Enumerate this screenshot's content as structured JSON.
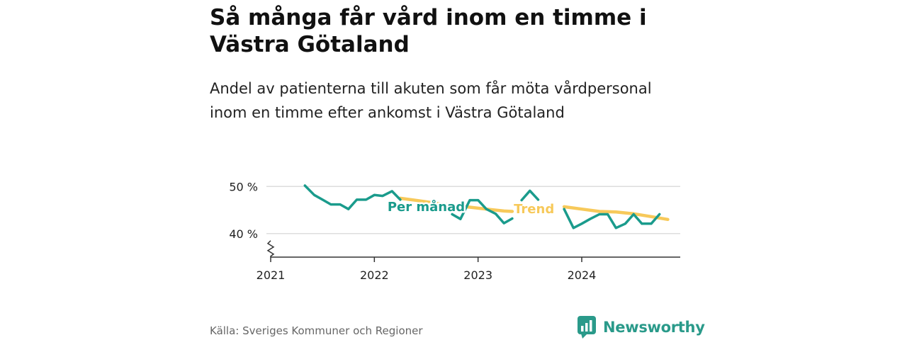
{
  "header": {
    "title": "Så många får vård inom en timme i Västra Götaland",
    "subtitle": "Andel av patienterna till akuten som får möta vårdpersonal inom en timme efter ankomst i Västra Götaland"
  },
  "footer": {
    "source": "Källa: Sveriges Kommuner och Regioner",
    "brand": "Newsworthy"
  },
  "colors": {
    "monthly": "#1a9b8c",
    "trend": "#f7c95a",
    "grid": "#dddddd",
    "axis": "#333333",
    "brand": "#2a9a8a"
  },
  "chart_data": {
    "type": "line",
    "x_ticks": [
      2021,
      2022,
      2023,
      2024
    ],
    "x_range": [
      2021.0,
      2024.95
    ],
    "y_ticks": [
      {
        "value": 40,
        "label": "40 %"
      },
      {
        "value": 50,
        "label": "50 %"
      }
    ],
    "y_range": [
      35,
      52
    ],
    "y_axis_break": true,
    "grid": "horizontal",
    "series": [
      {
        "name": "Per månad",
        "segments": [
          [
            [
              2021.33,
              50.2
            ],
            [
              2021.42,
              48.2
            ],
            [
              2021.5,
              47.2
            ],
            [
              2021.58,
              46.2
            ],
            [
              2021.67,
              46.2
            ],
            [
              2021.75,
              45.2
            ],
            [
              2021.83,
              47.2
            ],
            [
              2021.92,
              47.2
            ],
            [
              2022.0,
              48.2
            ],
            [
              2022.08,
              48.0
            ],
            [
              2022.17,
              49.0
            ],
            [
              2022.25,
              47.2
            ]
          ],
          [
            [
              2022.75,
              44.1
            ],
            [
              2022.83,
              43.1
            ],
            [
              2022.92,
              47.1
            ],
            [
              2023.0,
              47.1
            ],
            [
              2023.08,
              45.2
            ],
            [
              2023.17,
              44.2
            ],
            [
              2023.25,
              42.2
            ],
            [
              2023.33,
              43.2
            ]
          ],
          [
            [
              2023.42,
              47.1
            ],
            [
              2023.5,
              49.1
            ],
            [
              2023.58,
              47.2
            ]
          ],
          [
            [
              2023.83,
              45.2
            ],
            [
              2023.92,
              41.2
            ],
            [
              2024.0,
              42.1
            ],
            [
              2024.08,
              43.1
            ],
            [
              2024.17,
              44.1
            ],
            [
              2024.25,
              44.1
            ],
            [
              2024.33,
              41.2
            ],
            [
              2024.42,
              42.1
            ],
            [
              2024.5,
              44.1
            ],
            [
              2024.58,
              42.1
            ],
            [
              2024.67,
              42.1
            ],
            [
              2024.75,
              44.1
            ]
          ]
        ]
      },
      {
        "name": "Trend",
        "segments": [
          [
            [
              2022.25,
              47.5
            ],
            [
              2022.42,
              47.0
            ],
            [
              2022.58,
              46.5
            ],
            [
              2022.75,
              46.0
            ],
            [
              2022.92,
              45.6
            ],
            [
              2023.08,
              45.2
            ],
            [
              2023.25,
              44.8
            ],
            [
              2023.33,
              44.7
            ]
          ],
          [
            [
              2023.83,
              45.7
            ],
            [
              2024.0,
              45.2
            ],
            [
              2024.17,
              44.7
            ],
            [
              2024.33,
              44.6
            ],
            [
              2024.5,
              44.2
            ],
            [
              2024.67,
              43.6
            ],
            [
              2024.83,
              43.0
            ]
          ]
        ]
      }
    ],
    "labels": [
      {
        "series": 0,
        "text": "Per månad",
        "x": 2022.5,
        "y": 45.7
      },
      {
        "series": 1,
        "text": "Trend",
        "x": 2023.54,
        "y": 45.2
      }
    ]
  }
}
